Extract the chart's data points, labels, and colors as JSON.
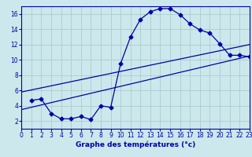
{
  "xlabel": "Graphe des températures (°c)",
  "bg_color": "#cce8ec",
  "grid_color": "#aacccc",
  "line_color": "#0000aa",
  "xlim": [
    0,
    23
  ],
  "ylim": [
    1,
    17
  ],
  "xticks": [
    0,
    1,
    2,
    3,
    4,
    5,
    6,
    7,
    8,
    9,
    10,
    11,
    12,
    13,
    14,
    15,
    16,
    17,
    18,
    19,
    20,
    21,
    22,
    23
  ],
  "yticks": [
    2,
    4,
    6,
    8,
    10,
    12,
    14,
    16
  ],
  "line1_x": [
    1,
    2,
    3,
    4,
    5,
    6,
    7,
    8,
    9,
    10,
    11,
    12,
    13,
    14,
    15,
    16,
    17,
    18,
    19,
    20,
    21,
    22,
    23
  ],
  "line1_y": [
    4.7,
    4.9,
    3.0,
    2.3,
    2.3,
    2.6,
    2.2,
    4.0,
    3.8,
    9.5,
    13.0,
    15.3,
    16.3,
    16.7,
    16.7,
    15.9,
    14.7,
    13.9,
    13.5,
    12.1,
    10.6,
    10.6,
    10.4
  ],
  "line2_x": [
    0,
    23
  ],
  "line2_y": [
    3.5,
    10.5
  ],
  "line3_x": [
    0,
    23
  ],
  "line3_y": [
    5.8,
    12.0
  ],
  "marker": "D",
  "marker_size": 2.5,
  "tick_fontsize": 5.5,
  "xlabel_fontsize": 6.5
}
